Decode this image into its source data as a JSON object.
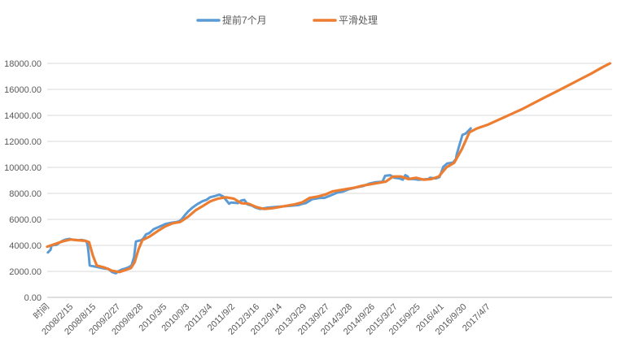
{
  "chart_data": {
    "type": "line",
    "title": "",
    "xlabel": "",
    "ylabel": "",
    "ylim": [
      0,
      18000
    ],
    "yticks": [
      0,
      2000,
      4000,
      6000,
      8000,
      10000,
      12000,
      14000,
      16000,
      18000
    ],
    "ytick_labels": [
      "0.00",
      "2000.00",
      "4000.00",
      "6000.00",
      "8000.00",
      "10000.00",
      "12000.00",
      "14000.00",
      "16000.00",
      "18000.00"
    ],
    "xlim": [
      "2007-08-15",
      "2020-01-01"
    ],
    "x_category_label": "时间",
    "xtick_labels": [
      "2008/2/15",
      "2008/8/15",
      "2009/2/27",
      "2009/8/28",
      "2010/3/5",
      "2010/9/3",
      "2011/3/4",
      "2011/9/2",
      "2012/3/16",
      "2012/9/14",
      "2013/3/29",
      "2013/9/27",
      "2014/3/28",
      "2014/9/26",
      "2015/3/27",
      "2015/9/25",
      "2016/4/1",
      "2016/9/30",
      "2017/4/7"
    ],
    "xtick_dates": [
      "2008-02-15",
      "2008-08-15",
      "2009-02-27",
      "2009-08-28",
      "2010-03-05",
      "2010-09-03",
      "2011-03-04",
      "2011-09-02",
      "2012-03-16",
      "2012-09-14",
      "2013-03-29",
      "2013-09-27",
      "2014-03-28",
      "2014-09-26",
      "2015-03-27",
      "2015-09-25",
      "2016-04-01",
      "2016-09-30",
      "2017-04-07"
    ],
    "grid": true,
    "legend_position": "top",
    "series": [
      {
        "name": "提前7个月",
        "color": "#5b9bd5",
        "x": [
          "2007-08-20",
          "2007-09-10",
          "2007-09-20",
          "2007-10-30",
          "2007-11-20",
          "2007-12-15",
          "2008-01-10",
          "2008-02-10",
          "2008-02-25",
          "2008-04-15",
          "2008-05-20",
          "2008-06-20",
          "2008-06-28",
          "2008-07-05",
          "2008-07-12",
          "2008-07-20",
          "2008-11-25",
          "2008-12-15",
          "2009-01-15",
          "2009-02-15",
          "2009-03-05",
          "2009-04-05",
          "2009-04-25",
          "2009-05-25",
          "2009-06-20",
          "2009-06-28",
          "2009-07-10",
          "2009-07-25",
          "2009-09-05",
          "2009-09-20",
          "2009-10-15",
          "2009-11-10",
          "2009-12-15",
          "2010-01-20",
          "2010-03-20",
          "2010-05-10",
          "2010-06-15",
          "2010-07-05",
          "2010-07-25",
          "2010-08-15",
          "2010-09-15",
          "2010-10-20",
          "2010-11-25",
          "2011-01-10",
          "2011-02-10",
          "2011-03-10",
          "2011-04-20",
          "2011-05-25",
          "2011-06-25",
          "2011-08-10",
          "2011-08-25",
          "2011-10-20",
          "2011-11-15",
          "2011-12-10",
          "2012-01-05",
          "2012-02-10",
          "2012-03-10",
          "2012-04-15",
          "2012-06-10",
          "2012-08-10",
          "2012-10-15",
          "2012-12-15",
          "2013-02-15",
          "2013-03-20",
          "2013-04-15",
          "2013-06-05",
          "2013-08-05",
          "2013-09-10",
          "2013-10-20",
          "2013-12-20",
          "2014-02-10",
          "2014-03-20",
          "2014-05-20",
          "2014-07-15",
          "2014-09-05",
          "2014-10-20",
          "2014-12-20",
          "2015-01-10",
          "2015-02-20",
          "2015-03-25",
          "2015-05-05",
          "2015-06-01",
          "2015-06-20",
          "2015-07-10",
          "2015-07-20",
          "2015-08-25",
          "2015-10-05",
          "2015-12-20",
          "2016-01-05",
          "2016-02-20",
          "2016-03-05",
          "2016-03-20",
          "2016-04-20",
          "2016-05-20",
          "2016-06-25",
          "2016-07-10",
          "2016-07-30",
          "2016-08-05",
          "2016-08-20",
          "2016-09-20",
          "2016-10-15",
          "2016-11-05",
          "2016-11-25"
        ],
        "values": [
          3450,
          3650,
          4000,
          4050,
          4200,
          4350,
          4450,
          4500,
          4450,
          4400,
          4420,
          4350,
          4200,
          3900,
          3300,
          2450,
          2200,
          2200,
          1950,
          1850,
          2000,
          2150,
          2200,
          2300,
          2450,
          2700,
          3100,
          4300,
          4400,
          4500,
          4850,
          4950,
          5250,
          5400,
          5650,
          5750,
          5800,
          5850,
          6000,
          6250,
          6600,
          6900,
          7150,
          7400,
          7500,
          7700,
          7800,
          7900,
          7750,
          7200,
          7300,
          7250,
          7450,
          7500,
          7150,
          7050,
          6900,
          6800,
          6900,
          6950,
          7000,
          7050,
          7100,
          7200,
          7250,
          7550,
          7650,
          7650,
          7800,
          8050,
          8150,
          8300,
          8450,
          8550,
          8750,
          8850,
          8900,
          9350,
          9400,
          9200,
          9150,
          9050,
          9400,
          9300,
          9100,
          9100,
          9050,
          9100,
          9200,
          9150,
          9200,
          9250,
          10050,
          10300,
          10350,
          10400,
          10650,
          11000,
          11500,
          12500,
          12600,
          12800,
          13000
        ]
      },
      {
        "name": "平滑处理",
        "color": "#ed7d31",
        "x": [
          "2007-08-15",
          "2007-10-15",
          "2007-12-15",
          "2008-02-15",
          "2008-04-15",
          "2008-06-15",
          "2008-07-15",
          "2008-08-15",
          "2008-09-15",
          "2008-11-15",
          "2009-01-15",
          "2009-03-15",
          "2009-05-15",
          "2009-06-15",
          "2009-07-15",
          "2009-08-15",
          "2009-09-15",
          "2009-11-15",
          "2010-01-15",
          "2010-03-15",
          "2010-05-15",
          "2010-07-15",
          "2010-09-15",
          "2010-11-15",
          "2011-01-15",
          "2011-03-15",
          "2011-05-15",
          "2011-07-15",
          "2011-09-15",
          "2011-11-15",
          "2012-01-15",
          "2012-03-15",
          "2012-05-15",
          "2012-07-15",
          "2012-09-15",
          "2012-11-15",
          "2013-01-15",
          "2013-03-15",
          "2013-05-15",
          "2013-07-15",
          "2013-09-15",
          "2013-11-15",
          "2014-01-15",
          "2014-03-15",
          "2014-05-15",
          "2014-07-15",
          "2014-09-15",
          "2014-11-15",
          "2015-01-15",
          "2015-03-15",
          "2015-05-15",
          "2015-07-15",
          "2015-09-15",
          "2015-11-15",
          "2016-01-15",
          "2016-03-15",
          "2016-05-15",
          "2016-07-15",
          "2016-09-15",
          "2016-11-15",
          "2017-01-15",
          "2017-04-15",
          "2017-07-15",
          "2017-10-15",
          "2018-01-15",
          "2018-04-15",
          "2018-07-15",
          "2018-10-15",
          "2019-01-15",
          "2019-04-15",
          "2019-07-15",
          "2019-10-15",
          "2019-12-15"
        ],
        "values": [
          3900,
          4100,
          4300,
          4450,
          4400,
          4350,
          4250,
          3200,
          2450,
          2300,
          2050,
          1950,
          2150,
          2250,
          2700,
          3700,
          4400,
          4700,
          5100,
          5450,
          5700,
          5800,
          6200,
          6700,
          7050,
          7400,
          7600,
          7700,
          7600,
          7250,
          7200,
          6950,
          6800,
          6850,
          6950,
          7050,
          7150,
          7300,
          7650,
          7750,
          7900,
          8150,
          8250,
          8350,
          8450,
          8600,
          8700,
          8800,
          8900,
          9300,
          9300,
          9100,
          9200,
          9050,
          9100,
          9300,
          10000,
          10350,
          11400,
          12700,
          13000,
          13300,
          13700,
          14100,
          14500,
          14950,
          15400,
          15850,
          16300,
          16750,
          17200,
          17700,
          18000
        ]
      }
    ]
  }
}
